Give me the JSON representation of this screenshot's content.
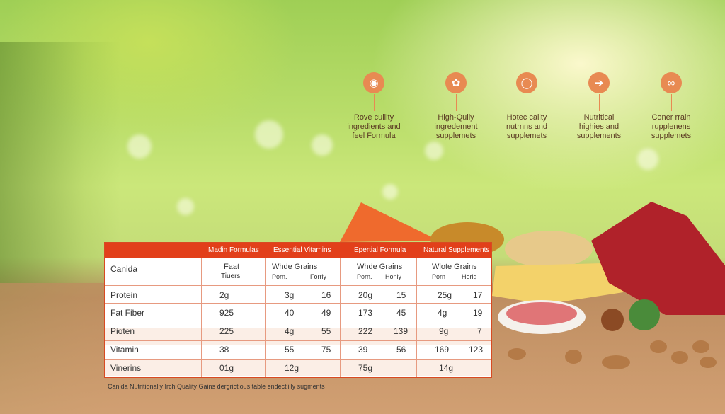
{
  "features": [
    {
      "icon": "bulb-icon",
      "lines": [
        "Rove cuility",
        "ingredients and",
        "feel Formula"
      ]
    },
    {
      "icon": "leaf-icon",
      "lines": [
        "High-Quliy",
        "ingredement",
        "supplemets"
      ]
    },
    {
      "icon": "bowl-icon",
      "lines": [
        "Hotec cality",
        "nutrnns and",
        "supplemets"
      ]
    },
    {
      "icon": "arrow-icon",
      "lines": [
        "Nutritical",
        "highies and",
        "supplements"
      ]
    },
    {
      "icon": "swirl-icon",
      "lines": [
        "Coner rrain",
        "rupplenens",
        "supplemets"
      ]
    }
  ],
  "table": {
    "headers": [
      "Madin Formulas",
      "Essential Vitamins",
      "Epertial Formula",
      "Natural Supplements"
    ],
    "subheader": {
      "c0": "Canida",
      "c1a": "Faat",
      "c1b": "Tiuers",
      "c2": "Whde Grains",
      "c2a": "Porn.",
      "c2b": "Forrly",
      "c3": "Whde Grains",
      "c3a": "Porn.",
      "c3b": "Honly",
      "c4": "Wlote Grains",
      "c4a": "Porn",
      "c4b": "Horig"
    },
    "rows": [
      {
        "label": "Protein",
        "c1": "2g",
        "c2a": "3g",
        "c2b": "16",
        "c3a": "20g",
        "c3b": "15",
        "c4a": "25g",
        "c4b": "17"
      },
      {
        "label": "Fat Fiber",
        "c1": "925",
        "c2a": "40",
        "c2b": "49",
        "c3a": "173",
        "c3b": "45",
        "c4a": "4g",
        "c4b": "19"
      },
      {
        "label": "Pioten",
        "c1": "225",
        "c2a": "4g",
        "c2b": "55",
        "c3a": "222",
        "c3b": "139",
        "c4a": "9g",
        "c4b": "7"
      },
      {
        "label": "Vitamin",
        "c1": "38",
        "c2a": "55",
        "c2b": "75",
        "c3a": "39",
        "c3b": "56",
        "c4a": "169",
        "c4b": "123"
      },
      {
        "label": "Vinerins",
        "c1": "01g",
        "c2a": "12g",
        "c2b": "",
        "c3a": "75g",
        "c3b": "",
        "c4a": "14g",
        "c4b": ""
      }
    ]
  },
  "caption": "Canida Nutritionally Irch Quality Gains dergrictious table endectiilly sugments",
  "colors": {
    "accent": "#e23f1a",
    "icon": "#e88a52"
  }
}
